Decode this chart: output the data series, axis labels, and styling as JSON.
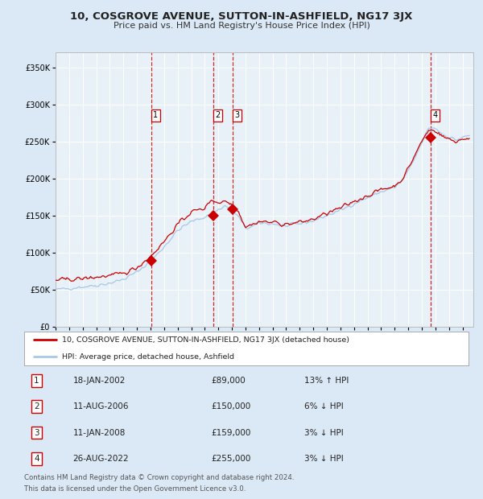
{
  "title": "10, COSGROVE AVENUE, SUTTON-IN-ASHFIELD, NG17 3JX",
  "subtitle": "Price paid vs. HM Land Registry's House Price Index (HPI)",
  "legend_line1": "10, COSGROVE AVENUE, SUTTON-IN-ASHFIELD, NG17 3JX (detached house)",
  "legend_line2": "HPI: Average price, detached house, Ashfield",
  "footnote1": "Contains HM Land Registry data © Crown copyright and database right 2024.",
  "footnote2": "This data is licensed under the Open Government Licence v3.0.",
  "transactions": [
    {
      "num": 1,
      "date": "18-JAN-2002",
      "price": 89000,
      "pct": "13%",
      "dir": "↑",
      "year": 2002.04
    },
    {
      "num": 2,
      "date": "11-AUG-2006",
      "price": 150000,
      "pct": "6%",
      "dir": "↓",
      "year": 2006.61
    },
    {
      "num": 3,
      "date": "11-JAN-2008",
      "price": 159000,
      "pct": "3%",
      "dir": "↓",
      "year": 2008.03
    },
    {
      "num": 4,
      "date": "26-AUG-2022",
      "price": 255000,
      "pct": "3%",
      "dir": "↓",
      "year": 2022.65
    }
  ],
  "hpi_color": "#a8c8e8",
  "price_color": "#cc0000",
  "dot_color": "#cc0000",
  "vline_color": "#cc0000",
  "bg_color": "#dbe8f5",
  "plot_bg": "#e8f0f8",
  "grid_color": "#ffffff",
  "ylim": [
    0,
    370000
  ],
  "yticks": [
    0,
    50000,
    100000,
    150000,
    200000,
    250000,
    300000,
    350000
  ],
  "xlim_start": 1995.0,
  "xlim_end": 2025.8,
  "xticks": [
    1995,
    1996,
    1997,
    1998,
    1999,
    2000,
    2001,
    2002,
    2003,
    2004,
    2005,
    2006,
    2007,
    2008,
    2009,
    2010,
    2011,
    2012,
    2013,
    2014,
    2015,
    2016,
    2017,
    2018,
    2019,
    2020,
    2021,
    2022,
    2023,
    2024,
    2025
  ],
  "hpi_keypoints": [
    [
      1995.0,
      50000
    ],
    [
      1996.0,
      52000
    ],
    [
      1997.0,
      54000
    ],
    [
      1998.0,
      56000
    ],
    [
      1999.0,
      59000
    ],
    [
      2000.0,
      64000
    ],
    [
      2001.0,
      74000
    ],
    [
      2002.0,
      88000
    ],
    [
      2003.0,
      108000
    ],
    [
      2004.0,
      130000
    ],
    [
      2005.0,
      142000
    ],
    [
      2006.0,
      148000
    ],
    [
      2007.0,
      158000
    ],
    [
      2007.5,
      163000
    ],
    [
      2008.0,
      158000
    ],
    [
      2008.5,
      148000
    ],
    [
      2009.0,
      133000
    ],
    [
      2009.5,
      135000
    ],
    [
      2010.0,
      140000
    ],
    [
      2011.0,
      139000
    ],
    [
      2012.0,
      136000
    ],
    [
      2013.0,
      139000
    ],
    [
      2014.0,
      143000
    ],
    [
      2015.0,
      150000
    ],
    [
      2016.0,
      157000
    ],
    [
      2017.0,
      166000
    ],
    [
      2018.0,
      174000
    ],
    [
      2019.0,
      182000
    ],
    [
      2020.0,
      188000
    ],
    [
      2020.5,
      196000
    ],
    [
      2021.0,
      210000
    ],
    [
      2021.5,
      228000
    ],
    [
      2022.0,
      248000
    ],
    [
      2022.5,
      268000
    ],
    [
      2023.0,
      268000
    ],
    [
      2023.5,
      260000
    ],
    [
      2024.0,
      256000
    ],
    [
      2024.5,
      252000
    ],
    [
      2025.0,
      255000
    ],
    [
      2025.5,
      258000
    ]
  ],
  "red_keypoints": [
    [
      1995.0,
      63000
    ],
    [
      1996.0,
      64000
    ],
    [
      1997.0,
      65000
    ],
    [
      1998.0,
      67000
    ],
    [
      1999.0,
      69000
    ],
    [
      2000.0,
      72000
    ],
    [
      2001.0,
      80000
    ],
    [
      2002.0,
      95000
    ],
    [
      2003.0,
      115000
    ],
    [
      2004.0,
      138000
    ],
    [
      2005.0,
      155000
    ],
    [
      2006.0,
      160000
    ],
    [
      2006.5,
      172000
    ],
    [
      2007.0,
      167000
    ],
    [
      2007.5,
      170000
    ],
    [
      2008.0,
      165000
    ],
    [
      2008.5,
      155000
    ],
    [
      2009.0,
      135000
    ],
    [
      2009.5,
      138000
    ],
    [
      2010.0,
      142000
    ],
    [
      2011.0,
      141000
    ],
    [
      2012.0,
      138000
    ],
    [
      2013.0,
      141000
    ],
    [
      2014.0,
      145000
    ],
    [
      2015.0,
      153000
    ],
    [
      2016.0,
      160000
    ],
    [
      2017.0,
      169000
    ],
    [
      2018.0,
      177000
    ],
    [
      2019.0,
      185000
    ],
    [
      2020.0,
      190000
    ],
    [
      2020.5,
      198000
    ],
    [
      2021.0,
      213000
    ],
    [
      2021.5,
      232000
    ],
    [
      2022.0,
      250000
    ],
    [
      2022.5,
      265000
    ],
    [
      2023.0,
      265000
    ],
    [
      2023.5,
      257000
    ],
    [
      2024.0,
      253000
    ],
    [
      2024.5,
      250000
    ],
    [
      2025.0,
      253000
    ],
    [
      2025.5,
      255000
    ]
  ]
}
